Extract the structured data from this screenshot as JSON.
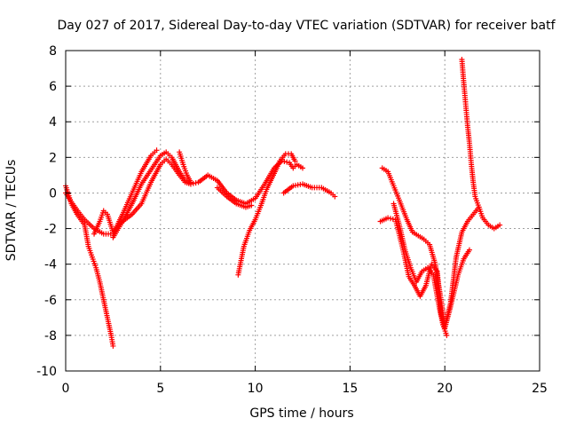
{
  "chart_data": {
    "type": "scatter",
    "title": "Day 027 of 2017, Sidereal Day-to-day VTEC variation (SDTVAR) for receiver batf",
    "xlabel": "GPS time / hours",
    "ylabel": "SDTVAR / TECUs",
    "xlim": [
      0,
      25
    ],
    "ylim": [
      -10,
      8
    ],
    "xticks": [
      0,
      5,
      10,
      15,
      20,
      25
    ],
    "yticks": [
      -10,
      -8,
      -6,
      -4,
      -2,
      0,
      2,
      4,
      6,
      8
    ],
    "grid": true,
    "marker": "+",
    "series": [
      {
        "name": "track-1",
        "color": "#ff0000",
        "x": [
          0.0,
          0.3,
          0.6,
          1.0,
          1.2,
          1.4,
          1.6,
          1.8,
          2.0,
          2.2,
          2.4,
          2.5
        ],
        "y": [
          0.4,
          -0.6,
          -1.2,
          -1.8,
          -3.0,
          -3.6,
          -4.2,
          -5.0,
          -6.0,
          -7.0,
          -8.0,
          -8.6
        ]
      },
      {
        "name": "track-2",
        "color": "#ff0000",
        "x": [
          0.0,
          0.3,
          0.7,
          1.0,
          1.5,
          2.0,
          2.5,
          3.0,
          3.5,
          4.0,
          4.5,
          4.8
        ],
        "y": [
          0.0,
          -0.5,
          -1.1,
          -1.5,
          -2.0,
          -2.3,
          -2.3,
          -1.2,
          0.0,
          1.2,
          2.1,
          2.4
        ]
      },
      {
        "name": "track-3",
        "color": "#ff0000",
        "x": [
          1.5,
          1.8,
          2.0,
          2.2,
          2.5,
          3.0,
          3.5,
          4.0,
          4.5,
          5.0,
          5.3,
          5.6,
          6.0,
          6.3,
          6.6,
          7.0,
          7.5,
          8.0,
          8.5,
          9.0,
          9.5,
          10.0,
          10.5,
          11.0,
          11.4,
          11.8,
          12.0,
          12.2,
          12.5
        ],
        "y": [
          -2.3,
          -1.6,
          -1.0,
          -1.2,
          -2.2,
          -1.6,
          -1.2,
          -0.6,
          0.6,
          1.6,
          1.9,
          1.6,
          1.0,
          0.6,
          0.5,
          0.6,
          1.0,
          0.7,
          0.0,
          -0.4,
          -0.6,
          -0.3,
          0.5,
          1.4,
          1.8,
          1.7,
          1.4,
          1.6,
          1.4
        ]
      },
      {
        "name": "track-4",
        "color": "#ff0000",
        "x": [
          2.5,
          3.0,
          3.5,
          4.0,
          4.5,
          5.0,
          5.3,
          5.6,
          6.0,
          6.3,
          6.6
        ],
        "y": [
          -2.5,
          -1.6,
          -0.6,
          0.5,
          1.3,
          2.1,
          2.3,
          2.0,
          1.2,
          0.7,
          0.5
        ]
      },
      {
        "name": "track-5",
        "color": "#ff0000",
        "x": [
          6.0,
          6.2,
          6.4,
          6.6
        ],
        "y": [
          2.3,
          1.6,
          1.0,
          0.6
        ]
      },
      {
        "name": "track-6",
        "color": "#ff0000",
        "x": [
          8.0,
          8.5,
          9.0,
          9.5,
          9.8
        ],
        "y": [
          0.3,
          -0.2,
          -0.6,
          -0.8,
          -0.7
        ]
      },
      {
        "name": "track-7",
        "color": "#ff0000",
        "x": [
          9.1,
          9.4,
          9.7,
          10.0,
          10.3,
          10.6,
          11.0,
          11.3,
          11.6,
          11.9,
          12.1
        ],
        "y": [
          -4.6,
          -3.0,
          -2.1,
          -1.5,
          -0.7,
          0.2,
          1.1,
          1.8,
          2.2,
          2.2,
          1.8
        ]
      },
      {
        "name": "track-8",
        "color": "#ff0000",
        "x": [
          11.5,
          12.0,
          12.5,
          13.0,
          13.5,
          14.0,
          14.2
        ],
        "y": [
          0.0,
          0.4,
          0.5,
          0.3,
          0.3,
          0.0,
          -0.2
        ]
      },
      {
        "name": "track-9",
        "color": "#ff0000",
        "x": [
          16.7,
          17.0,
          17.3,
          17.6,
          18.0,
          18.3,
          18.6,
          18.9,
          19.2,
          19.5,
          19.8,
          20.0,
          20.3,
          20.6,
          20.9,
          21.2,
          21.5,
          21.8,
          22.0,
          22.3,
          22.6,
          22.9
        ],
        "y": [
          1.4,
          1.2,
          0.4,
          -0.4,
          -1.5,
          -2.2,
          -2.4,
          -2.6,
          -2.9,
          -4.0,
          -6.0,
          -7.5,
          -6.2,
          -3.6,
          -2.2,
          -1.6,
          -1.2,
          -0.8,
          -1.4,
          -1.8,
          -2.0,
          -1.8
        ]
      },
      {
        "name": "track-10",
        "color": "#ff0000",
        "x": [
          16.6,
          17.0,
          17.4,
          17.8,
          18.1,
          18.4,
          18.7,
          19.0,
          19.3,
          19.6,
          19.8,
          20.0,
          20.3,
          20.7,
          21.0,
          21.3
        ],
        "y": [
          -1.6,
          -1.4,
          -1.5,
          -3.2,
          -4.7,
          -5.2,
          -5.8,
          -5.2,
          -4.0,
          -4.4,
          -6.8,
          -7.6,
          -6.4,
          -4.6,
          -3.7,
          -3.2
        ]
      },
      {
        "name": "track-11",
        "color": "#ff0000",
        "x": [
          17.3,
          17.6,
          17.9,
          18.2,
          18.5,
          18.8,
          19.1,
          19.4,
          19.7,
          19.9,
          20.1
        ],
        "y": [
          -0.6,
          -1.8,
          -3.2,
          -4.2,
          -5.0,
          -4.4,
          -4.2,
          -4.6,
          -6.4,
          -7.4,
          -8.0
        ]
      },
      {
        "name": "track-12",
        "color": "#ff0000",
        "x": [
          20.9,
          21.0,
          21.1,
          21.2,
          21.3,
          21.4,
          21.5,
          21.6,
          21.8
        ],
        "y": [
          7.5,
          6.2,
          5.0,
          3.8,
          2.8,
          1.6,
          0.6,
          -0.2,
          -0.8
        ]
      }
    ]
  }
}
